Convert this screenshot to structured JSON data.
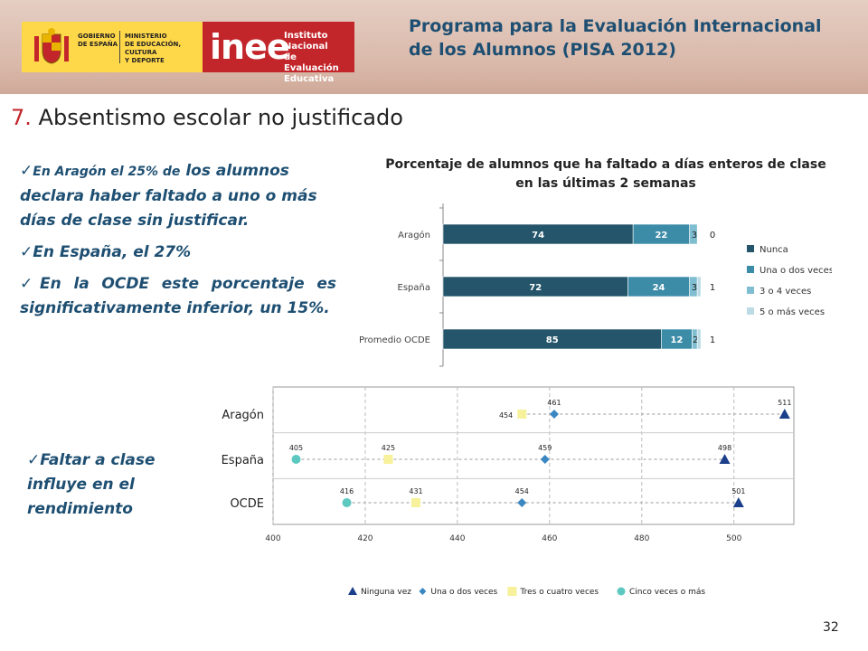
{
  "header": {
    "gov_label": [
      "GOBIERNO",
      "DE ESPAÑA"
    ],
    "ministry_label": [
      "MINISTERIO",
      "DE EDUCACIÓN, CULTURA",
      "Y DEPORTE"
    ],
    "inee_logo": "inee",
    "inee_label": [
      "Instituto Nacional",
      "de Evaluación",
      "Educativa"
    ],
    "program_title": "Programa para la Evaluación Internacional de los Alumnos (PISA 2012)"
  },
  "section": {
    "number": "7.",
    "title": "Absentismo escolar no justificado"
  },
  "bullets": {
    "b1_small": "En Aragón el 25% de",
    "b1_rest": "los alumnos declara haber faltado a uno o más días de clase sin justificar.",
    "b2": "En España, el 27%",
    "b3": "En la OCDE este porcentaje es significativamente inferior, un 15%.",
    "b4": "Faltar a clase influye en el rendimiento"
  },
  "page_number": "32",
  "chart_data": [
    {
      "type": "bar",
      "stacked": true,
      "orientation": "horizontal",
      "title": "Porcentaje de alumnos que ha faltado a días enteros de clase en las últimas 2 semanas",
      "categories": [
        "Aragón",
        "España",
        "Promedio OCDE"
      ],
      "series": [
        {
          "name": "Nunca",
          "values": [
            74,
            72,
            85
          ],
          "color": "#24556a"
        },
        {
          "name": "Una o dos veces",
          "values": [
            22,
            24,
            12
          ],
          "color": "#3c8ba7"
        },
        {
          "name": "3 o 4 veces",
          "values": [
            3,
            3,
            2
          ],
          "color": "#7fbdd0"
        },
        {
          "name": "5 o más veces",
          "values": [
            0,
            1,
            1
          ],
          "color": "#bcdbe5"
        }
      ],
      "labels": [
        [
          "74",
          "22",
          "3",
          "0"
        ],
        [
          "72",
          "24",
          "3",
          "1"
        ],
        [
          "85",
          "12",
          "2",
          "1"
        ]
      ],
      "legend": "right"
    },
    {
      "type": "scatter",
      "categories": [
        "Aragón",
        "España",
        "OCDE"
      ],
      "xlim": [
        400,
        513
      ],
      "xticks": [
        400,
        420,
        440,
        460,
        480,
        500
      ],
      "series": [
        {
          "name": "Ninguna vez",
          "values": [
            511,
            498,
            501
          ],
          "color": "#1b3f8b",
          "marker": "triangle"
        },
        {
          "name": "Una o dos veces",
          "values": [
            461,
            459,
            454
          ],
          "color": "#3b87c2",
          "marker": "diamond"
        },
        {
          "name": "Tres o cuatro veces",
          "values": [
            454,
            425,
            431
          ],
          "color": "#f6f19a",
          "marker": "square"
        },
        {
          "name": "Cinco veces o más",
          "values": [
            null,
            405,
            416
          ],
          "color": "#5cc8c0",
          "marker": "circle"
        }
      ],
      "legend": "bottom",
      "grid": true
    }
  ]
}
